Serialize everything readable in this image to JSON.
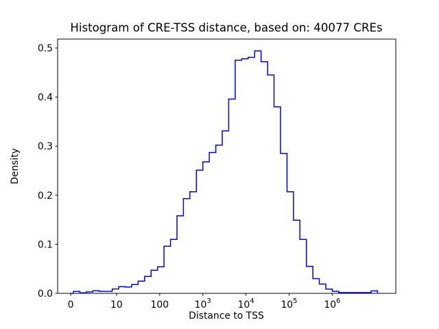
{
  "chart_data": {
    "type": "bar",
    "subtype": "step-histogram",
    "title": "Histogram of CRE-TSS distance, based on: 40077 CREs",
    "xlabel": "Distance to TSS",
    "ylabel": "Density",
    "n_samples_label": "40077 CREs",
    "x_scale": "symlog",
    "grid": "off",
    "legend": "none",
    "line_color": "#0000ee",
    "ylim": [
      0.0,
      0.518
    ],
    "yticks": [
      "0.0",
      "0.1",
      "0.2",
      "0.3",
      "0.4",
      "0.5"
    ],
    "xticks": [
      {
        "label": "0",
        "value": 0
      },
      {
        "label": "10",
        "value": 10
      },
      {
        "label": "100",
        "value": 100
      },
      {
        "label": "10^3",
        "value": 1000
      },
      {
        "label": "10^4",
        "value": 10000
      },
      {
        "label": "10^5",
        "value": 100000
      },
      {
        "label": "10^6",
        "value": 1000000
      }
    ],
    "bin_edges_log10_distance": [
      0.0,
      0.15,
      0.3,
      0.45,
      0.6,
      0.75,
      0.9,
      1.05,
      1.2,
      1.35,
      1.5,
      1.65,
      1.8,
      1.95,
      2.1,
      2.25,
      2.4,
      2.55,
      2.7,
      2.85,
      3.0,
      3.15,
      3.3,
      3.45,
      3.6,
      3.75,
      3.9,
      4.05,
      4.2,
      4.35,
      4.5,
      4.65,
      4.8,
      4.95,
      5.1,
      5.25,
      5.4,
      5.55,
      5.7,
      5.85,
      6.0,
      6.15,
      6.3,
      6.45,
      6.6,
      6.75,
      6.9,
      7.05
    ],
    "densities": [
      0.004,
      0.001,
      0.003,
      0.0055,
      0.004,
      0.004,
      0.009,
      0.0135,
      0.013,
      0.018,
      0.025,
      0.0345,
      0.047,
      0.054,
      0.096,
      0.11,
      0.158,
      0.193,
      0.207,
      0.251,
      0.268,
      0.287,
      0.302,
      0.331,
      0.396,
      0.475,
      0.478,
      0.481,
      0.494,
      0.472,
      0.445,
      0.38,
      0.285,
      0.207,
      0.149,
      0.11,
      0.055,
      0.03,
      0.019,
      0.0088,
      0.0042,
      0.0015,
      0.0015,
      0.0015,
      0.0015,
      0.0015,
      0.005
    ]
  }
}
